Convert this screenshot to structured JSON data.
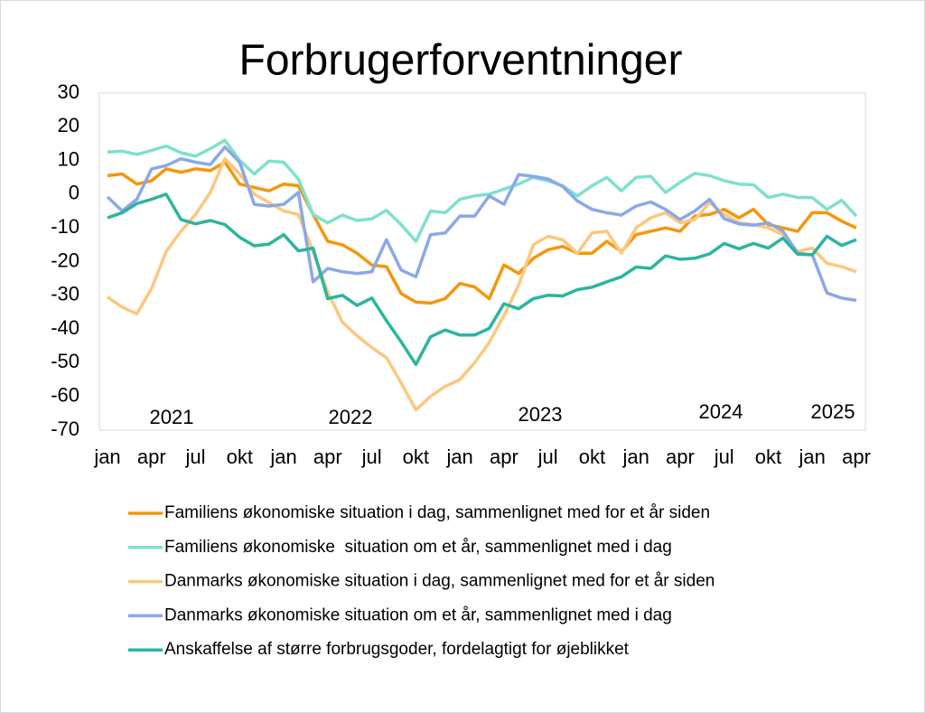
{
  "chart_data": {
    "type": "line",
    "title": "Forbrugerforventninger",
    "categories": [
      "jan",
      null,
      null,
      "apr",
      null,
      null,
      "jul",
      null,
      null,
      "okt",
      null,
      null,
      "jan",
      null,
      null,
      "apr",
      null,
      null,
      "jul",
      null,
      null,
      "okt",
      null,
      null,
      "jan",
      null,
      null,
      "apr",
      null,
      null,
      "jul",
      null,
      null,
      "okt",
      null,
      null,
      "jan",
      null,
      null,
      "apr",
      null,
      null,
      "jul",
      null,
      null,
      "okt",
      null,
      null,
      "jan",
      null,
      null,
      "apr"
    ],
    "annotations": [
      "2021",
      "2022",
      "2023",
      "2024",
      "2025"
    ],
    "ylim": [
      -70,
      30
    ],
    "yticks": [
      -70,
      -60,
      -50,
      -40,
      -30,
      -20,
      -10,
      0,
      10,
      20,
      30
    ],
    "grid": false,
    "legend": "bottom",
    "series": [
      {
        "name": "Familiens økonomiske situation i dag, sammenlignet med for et år siden",
        "color": "#f5960a",
        "values": [
          5.5,
          6,
          3,
          4,
          7.5,
          6.5,
          7.5,
          7,
          9.5,
          3,
          2,
          1,
          3,
          2.5,
          -6,
          -14,
          -15,
          -17.5,
          -21,
          -21.5,
          -29.5,
          -32,
          -32.3,
          -31,
          -26.5,
          -27.5,
          -31,
          -21,
          -23.5,
          -19,
          -16.5,
          -15.5,
          -17.5,
          -17.5,
          -14,
          -17,
          -12,
          -11,
          -10,
          -11,
          -6.5,
          -6,
          -4.5,
          -7,
          -4.5,
          -9,
          -10,
          -11,
          -5.5,
          -5.5,
          -8,
          -10
        ]
      },
      {
        "name": "Familiens økonomiske  situation om et år, sammenlignet med i dag",
        "color": "#7ee0cf",
        "values": [
          12.5,
          12.8,
          11.8,
          13,
          14.3,
          12.3,
          11.3,
          13.5,
          16,
          10,
          6,
          9.8,
          9.5,
          4.5,
          -6,
          -8.5,
          -6.2,
          -7.8,
          -7.3,
          -4.8,
          -9,
          -14,
          -5,
          -5.5,
          -1.5,
          -0.5,
          0,
          1.5,
          3,
          5,
          4,
          2.5,
          -0.5,
          2.5,
          5,
          1,
          5,
          5.3,
          0.5,
          3.5,
          6.2,
          5.5,
          4,
          3,
          2.8,
          -1,
          0,
          -1,
          -1,
          -4.5,
          -1.8,
          -6.5
        ]
      },
      {
        "name": "Danmarks økonomiske situation i dag, sammenlignet med for et år siden",
        "color": "#fcc77e",
        "values": [
          -30.5,
          -33.5,
          -35.5,
          -28,
          -17,
          -11,
          -6,
          0.5,
          10.5,
          6,
          0,
          -2.5,
          -5,
          -6,
          -17,
          -29,
          -38,
          -42,
          -45.5,
          -48.5,
          -56,
          -64,
          -60,
          -57,
          -55,
          -50,
          -44,
          -36,
          -27,
          -15,
          -12.5,
          -13.5,
          -17.5,
          -11.5,
          -11,
          -17.5,
          -10,
          -7,
          -5.5,
          -8.5,
          -7.5,
          -2.5,
          -6,
          -8.5,
          -9,
          -10,
          -12,
          -17,
          -16,
          -20.5,
          -21.5,
          -23
        ]
      },
      {
        "name": "Danmarks økonomiske situation om et år, sammenlignet med i dag",
        "color": "#8aa8e8",
        "values": [
          -0.8,
          -5,
          -1.5,
          7.5,
          8.5,
          10.5,
          9.5,
          8.8,
          14,
          9.5,
          -3,
          -3.5,
          -3,
          0.5,
          -26,
          -22,
          -23,
          -23.5,
          -23,
          -13.5,
          -22.5,
          -24.5,
          -12,
          -11.5,
          -6.5,
          -6.5,
          -0.5,
          -3,
          5.8,
          5.3,
          4.5,
          2.3,
          -2,
          -4.5,
          -5.5,
          -6.2,
          -3.5,
          -2.3,
          -4.5,
          -7.5,
          -5,
          -1.5,
          -7.3,
          -8.8,
          -9.2,
          -8.5,
          -11,
          -17.5,
          -18,
          -29.3,
          -30.8,
          -31.5
        ]
      },
      {
        "name": "Anskaffelse af større forbrugsgoder, fordelagtigt for øjeblikket",
        "color": "#2ab5a0",
        "values": [
          -7,
          -5.5,
          -2.8,
          -1.5,
          0,
          -7.5,
          -8.8,
          -7.8,
          -9,
          -12.8,
          -15.3,
          -14.8,
          -12,
          -16.8,
          -16,
          -31,
          -30,
          -33,
          -30.8,
          -37.5,
          -43.8,
          -50.5,
          -42.3,
          -40.3,
          -41.8,
          -41.8,
          -39.8,
          -32.5,
          -34,
          -31,
          -30,
          -30.2,
          -28.3,
          -27.6,
          -26,
          -24.5,
          -21.6,
          -22,
          -18.3,
          -19.3,
          -19,
          -17.7,
          -14.6,
          -16.2,
          -14.6,
          -16,
          -13,
          -17.8,
          -18,
          -12.5,
          -15.2,
          -13.5
        ]
      }
    ]
  }
}
